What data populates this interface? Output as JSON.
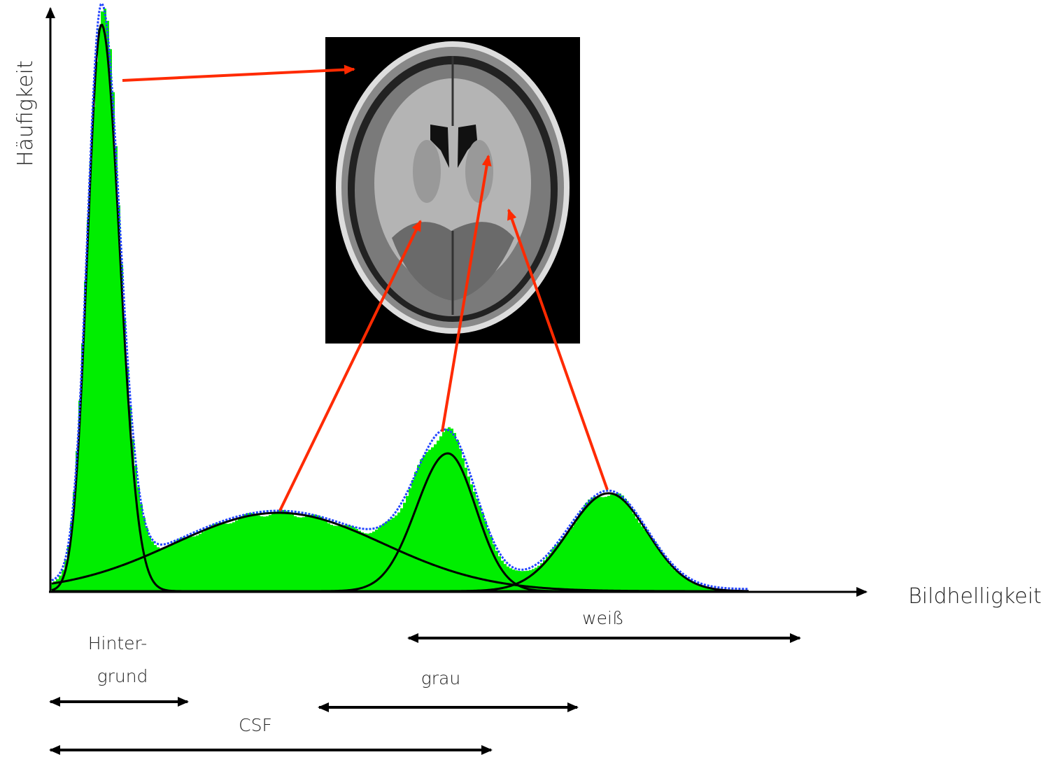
{
  "y_axis_label": "Häufigkeit",
  "x_axis_label": "Bildhelligkeit",
  "ranges": {
    "white": "weiß",
    "background": [
      "Hinter-",
      "grund"
    ],
    "grey": "grau",
    "csf": "CSF"
  }
}
